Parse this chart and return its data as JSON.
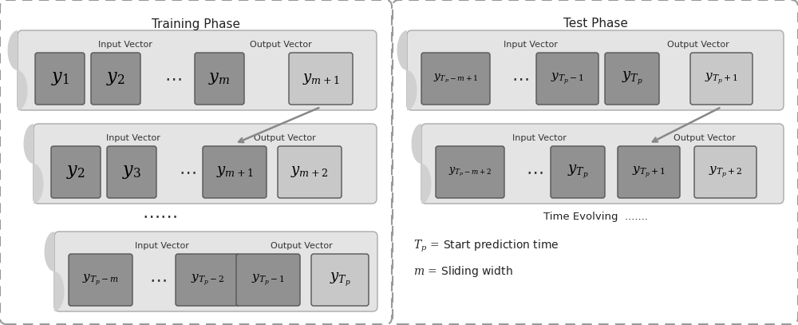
{
  "fig_width": 10.0,
  "fig_height": 4.07,
  "bg_color": "#ffffff",
  "dashed_box_color": "#999999",
  "row_bg_color": "#e4e4e4",
  "row_edge_color": "#aaaaaa",
  "cell_dark_color": "#919191",
  "cell_light_color": "#c8c8c8",
  "cell_edge_color": "#555555",
  "tab_color": "#d0d0d0",
  "arrow_color": "#888888",
  "title_color": "#222222",
  "label_color": "#222222",
  "text_color": "#222222",
  "training_title": "Training Phase",
  "test_title": "Test Phase",
  "time_evolving_text": "Time Evolving  .......",
  "input_label": "Input Vector",
  "output_label": "Output Vector"
}
